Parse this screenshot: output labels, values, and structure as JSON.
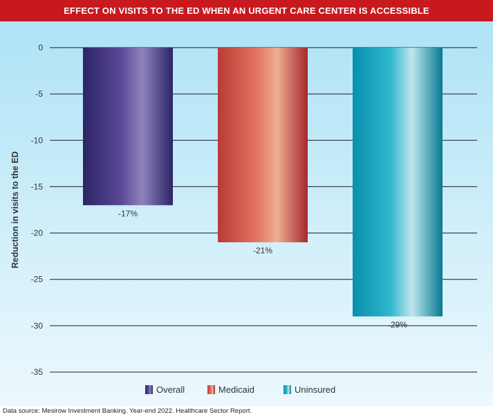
{
  "title": "EFFECT ON VISITS TO THE ED WHEN AN URGENT CARE CENTER IS ACCESSIBLE",
  "source": "Data source: Mesirow Investment Banking. Year-end 2022. Healthcare Sector Report.",
  "chart_data": {
    "type": "bar",
    "title": "EFFECT ON VISITS TO THE ED WHEN AN URGENT CARE CENTER IS ACCESSIBLE",
    "categories": [
      "Overall",
      "Medicaid",
      "Uninsured"
    ],
    "values": [
      -17,
      -21,
      -29
    ],
    "value_labels": [
      "-17%",
      "-21%",
      "-29%"
    ],
    "xlabel": "",
    "ylabel": "Reduction in visits to the ED",
    "ylim": [
      -35,
      0
    ],
    "yticks": [
      0,
      -5,
      -10,
      -15,
      -20,
      -25,
      -30,
      -35
    ],
    "grid": true,
    "legend_placement": "bottom-center",
    "legend": [
      "Overall",
      "Medicaid",
      "Uninsured"
    ],
    "colors": {
      "Overall": [
        "#2c2466",
        "#5a4796",
        "#8f82bd",
        "#2c2466"
      ],
      "Medicaid": [
        "#b93a35",
        "#e0725e",
        "#efae92",
        "#a3282d"
      ],
      "Uninsured": [
        "#0990ad",
        "#2eb6cc",
        "#bfe6ee",
        "#087a93"
      ]
    }
  }
}
